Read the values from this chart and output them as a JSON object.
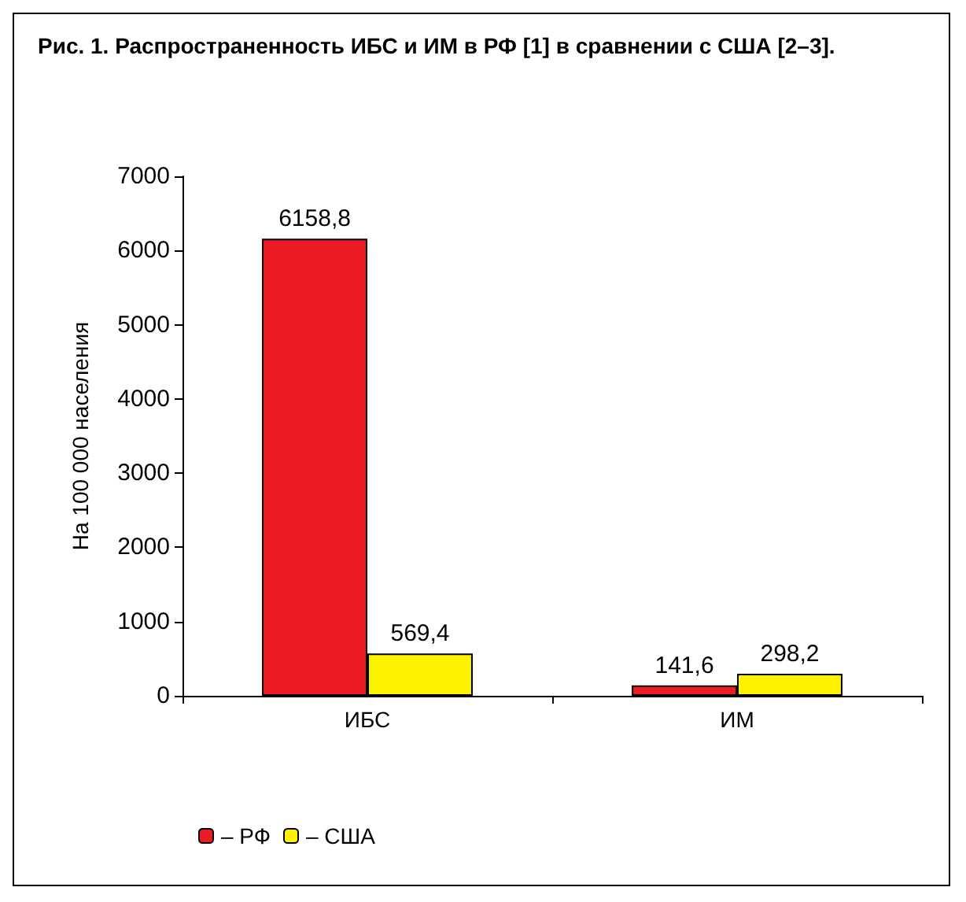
{
  "chart_data": {
    "type": "bar",
    "title": "Рис. 1. Распространенность ИБС и ИМ в РФ [1] в сравнении с США [2–3].",
    "ylabel": "На 100 000 населения",
    "categories": [
      "ИБС",
      "ИМ"
    ],
    "series": [
      {
        "name": "– РФ",
        "color": "#ed1c24",
        "values": [
          6158.8,
          141.6
        ],
        "value_labels": [
          "6158,8",
          "141,6"
        ]
      },
      {
        "name": "– США",
        "color": "#fff200",
        "values": [
          569.4,
          298.2
        ],
        "value_labels": [
          "569,4",
          "298,2"
        ]
      }
    ],
    "ylim": [
      0,
      7000
    ],
    "yticks": [
      0,
      1000,
      2000,
      3000,
      4000,
      5000,
      6000,
      7000
    ],
    "grid": false,
    "legend": "bottom left"
  }
}
